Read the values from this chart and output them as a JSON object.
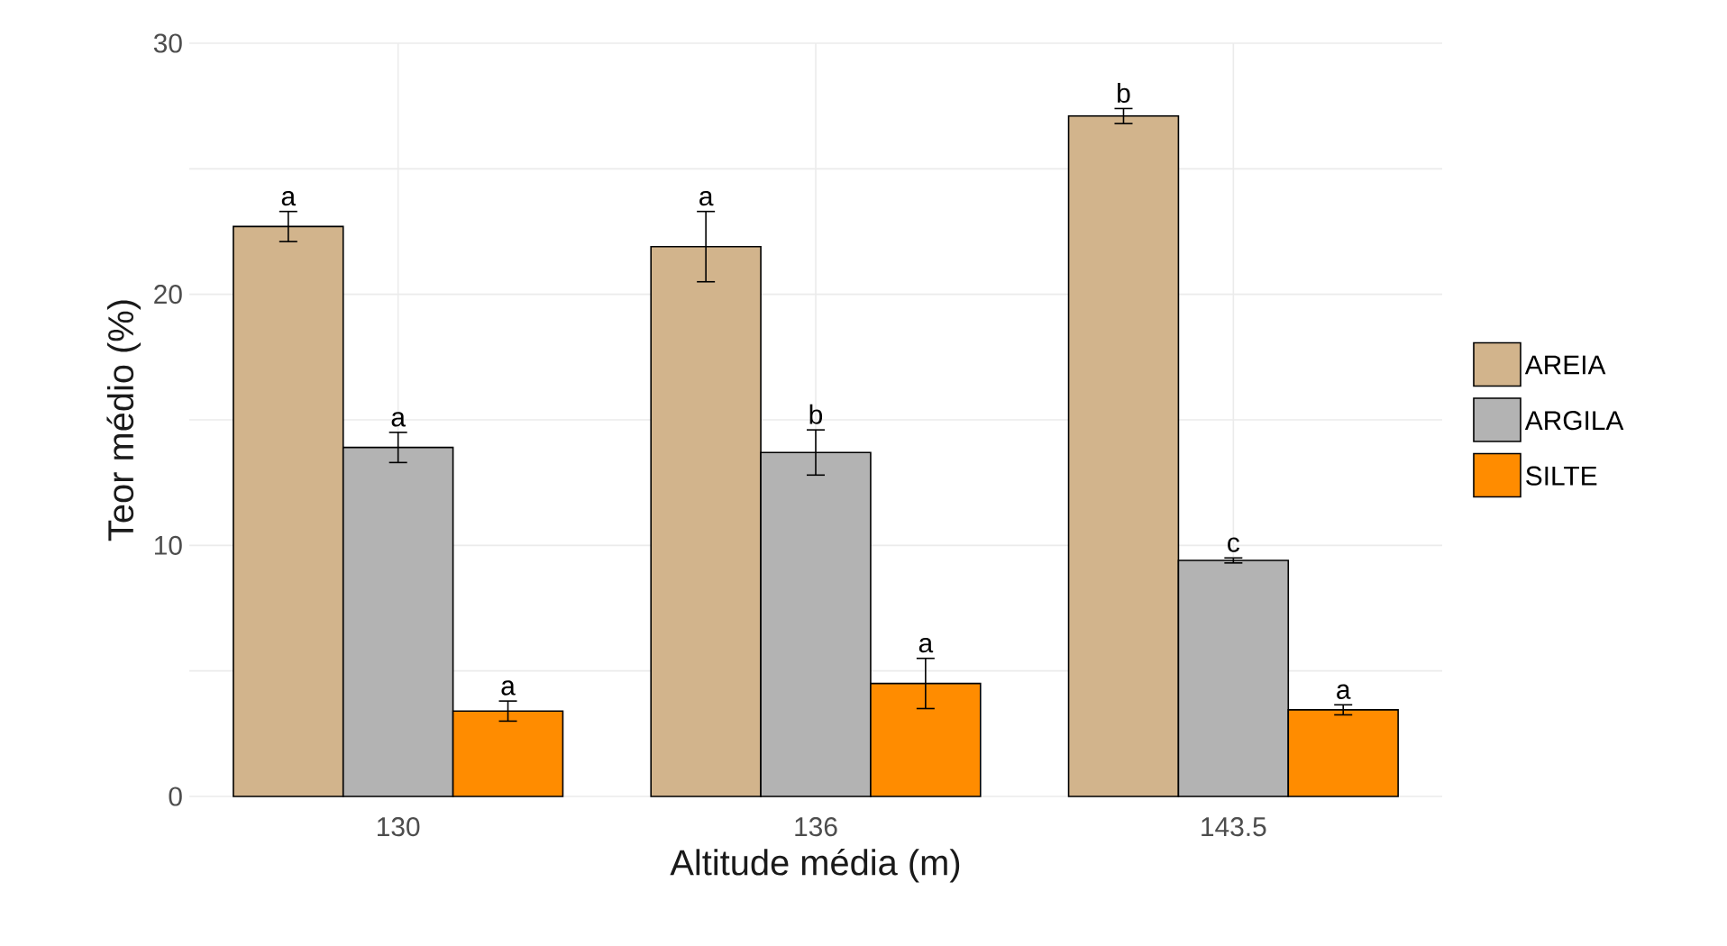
{
  "chart_data": {
    "type": "bar",
    "xlabel": "Altitude média (m)",
    "ylabel": "Teor médio (%)",
    "categories": [
      "130",
      "136",
      "143.5"
    ],
    "series": [
      {
        "name": "AREIA",
        "color": "#d2b48c",
        "values": [
          22.7,
          21.9,
          27.1
        ],
        "errors": [
          0.6,
          1.4,
          0.3
        ],
        "value_labels": [
          "a",
          "a",
          "b"
        ]
      },
      {
        "name": "ARGILA",
        "color": "#b3b3b3",
        "values": [
          13.9,
          13.7,
          9.4
        ],
        "errors": [
          0.6,
          0.9,
          0.1
        ],
        "value_labels": [
          "a",
          "b",
          "c"
        ]
      },
      {
        "name": "SILTE",
        "color": "#ff8c00",
        "values": [
          3.4,
          4.5,
          3.45
        ],
        "errors": [
          0.4,
          1.0,
          0.2
        ],
        "value_labels": [
          "a",
          "a",
          "a"
        ]
      }
    ],
    "ylim": [
      0,
      30
    ],
    "yticks": [
      0,
      {
        "value": 5,
        "label": null
      },
      10,
      {
        "value": 15,
        "label": null
      },
      20,
      {
        "value": 25,
        "label": null
      },
      30
    ],
    "grid": true,
    "legend": "right"
  }
}
